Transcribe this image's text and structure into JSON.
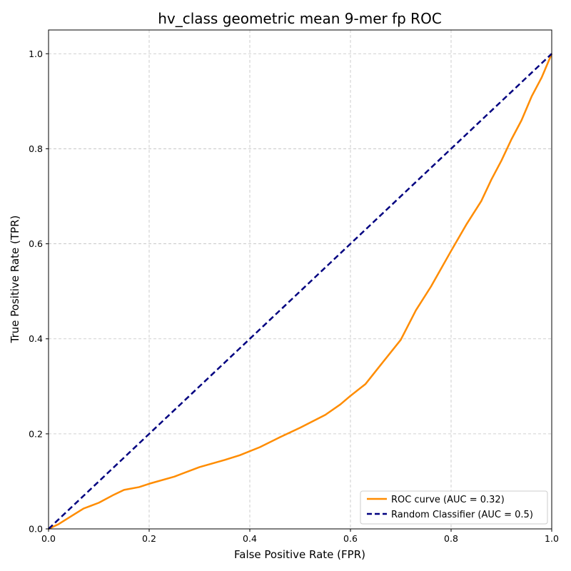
{
  "chart_data": {
    "type": "line",
    "title": "hv_class geometric mean 9-mer fp ROC",
    "xlabel": "False Positive Rate (FPR)",
    "ylabel": "True Positive Rate (TPR)",
    "xlim": [
      0.0,
      1.0
    ],
    "ylim": [
      0.0,
      1.05
    ],
    "xticks": [
      0.0,
      0.2,
      0.4,
      0.6,
      0.8,
      1.0
    ],
    "yticks": [
      0.0,
      0.2,
      0.4,
      0.6,
      0.8,
      1.0
    ],
    "xtick_labels": [
      "0.0",
      "0.2",
      "0.4",
      "0.6",
      "0.8",
      "1.0"
    ],
    "ytick_labels": [
      "0.0",
      "0.2",
      "0.4",
      "0.6",
      "0.8",
      "1.0"
    ],
    "grid": true,
    "legend_position": "lower-right",
    "series": [
      {
        "name": "ROC curve (AUC = 0.32)",
        "color": "#ff8c00",
        "style": "solid",
        "x": [
          0.0,
          0.02,
          0.05,
          0.07,
          0.1,
          0.13,
          0.15,
          0.18,
          0.2,
          0.25,
          0.3,
          0.35,
          0.38,
          0.42,
          0.46,
          0.5,
          0.55,
          0.58,
          0.6,
          0.63,
          0.66,
          0.7,
          0.73,
          0.76,
          0.8,
          0.83,
          0.86,
          0.88,
          0.9,
          0.92,
          0.94,
          0.96,
          0.98,
          1.0
        ],
        "y": [
          0.0,
          0.01,
          0.03,
          0.043,
          0.055,
          0.072,
          0.082,
          0.088,
          0.095,
          0.11,
          0.13,
          0.145,
          0.155,
          0.172,
          0.193,
          0.213,
          0.24,
          0.262,
          0.28,
          0.305,
          0.345,
          0.398,
          0.46,
          0.51,
          0.585,
          0.64,
          0.69,
          0.735,
          0.775,
          0.82,
          0.86,
          0.91,
          0.95,
          1.0
        ]
      },
      {
        "name": "Random Classifier (AUC = 0.5)",
        "color": "#000080",
        "style": "dashed",
        "x": [
          0.0,
          1.0
        ],
        "y": [
          0.0,
          1.0
        ]
      }
    ]
  }
}
